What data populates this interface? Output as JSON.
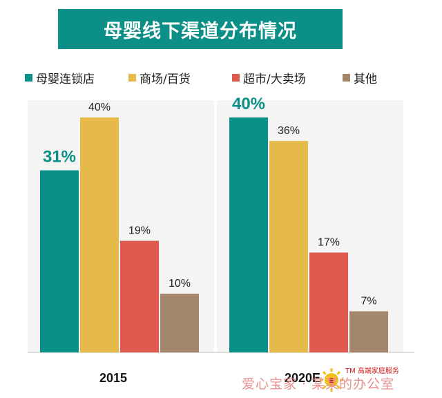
{
  "title": "母婴线下渠道分布情况",
  "colors": {
    "banner": "#0b8f86",
    "teal": "#0b8f86",
    "gold": "#e6b94b",
    "red": "#e0594f",
    "brown": "#a3866c",
    "highlight_label": "#0b8f86"
  },
  "watermark": {
    "tm_text": "TM 高端家庭服务",
    "text": "爱心宝家 · 某某的办公室"
  },
  "chart_data": {
    "type": "bar",
    "title": "母婴线下渠道分布情况",
    "categories": [
      "2015",
      "2020E"
    ],
    "ylim": [
      0,
      45
    ],
    "grid": false,
    "legend": "top",
    "xlabel": "",
    "ylabel": "",
    "series": [
      {
        "name": "母婴连锁店",
        "values": [
          31,
          40
        ],
        "labels": [
          "31%",
          "40%"
        ],
        "color": "#0b8f86"
      },
      {
        "name": "商场/百货",
        "values": [
          40,
          36
        ],
        "labels": [
          "40%",
          "36%"
        ],
        "color": "#e6b94b"
      },
      {
        "name": "超市/大卖场",
        "values": [
          19,
          17
        ],
        "labels": [
          "19%",
          "17%"
        ],
        "color": "#e0594f"
      },
      {
        "name": "其他",
        "values": [
          10,
          7
        ],
        "labels": [
          "10%",
          "7%"
        ],
        "color": "#a3866c"
      }
    ]
  }
}
